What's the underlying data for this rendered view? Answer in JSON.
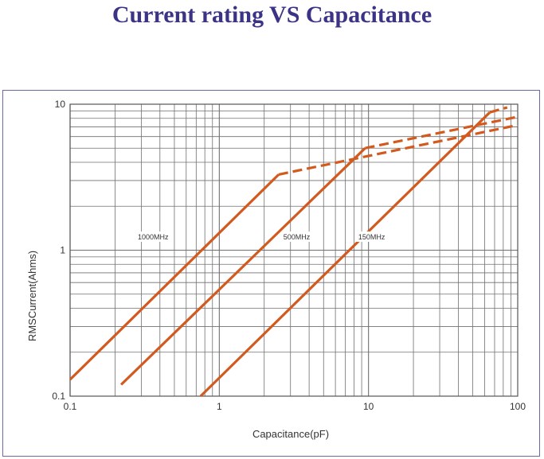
{
  "page_title": "Current rating VS Capacitance",
  "colors": {
    "title": "#3b3486",
    "series": "#d35a1f",
    "grid": "#6f6f6f",
    "frame": "#6b6aa0"
  },
  "chart_data": {
    "type": "line",
    "title": "Current rating VS Capacitance",
    "xlabel": "Capacitance(pF)",
    "ylabel": "RMSCurrent(Ahms)",
    "xscale": "log",
    "yscale": "log",
    "xlim": [
      0.1,
      100
    ],
    "ylim": [
      0.1,
      10
    ],
    "xticks": [
      "0.1",
      "1",
      "10",
      "100"
    ],
    "yticks": [
      "0.1",
      "1",
      "10"
    ],
    "grid": true,
    "series": [
      {
        "name": "1000MHz",
        "label_at": [
          0.36,
          1.2
        ],
        "solid": [
          [
            0.1,
            0.13
          ],
          [
            2.5,
            3.3
          ]
        ],
        "dashed": [
          [
            2.5,
            3.3
          ],
          [
            100,
            7.2
          ]
        ]
      },
      {
        "name": "500MHz",
        "label_at": [
          3.3,
          1.2
        ],
        "solid": [
          [
            0.22,
            0.12
          ],
          [
            9.5,
            5.0
          ]
        ],
        "dashed": [
          [
            9.5,
            5.0
          ],
          [
            100,
            8.2
          ]
        ]
      },
      {
        "name": "150MHz",
        "label_at": [
          10.5,
          1.2
        ],
        "solid": [
          [
            0.75,
            0.1
          ],
          [
            65,
            8.8
          ]
        ],
        "dashed": [
          [
            65,
            8.8
          ],
          [
            85,
            9.5
          ]
        ]
      }
    ]
  }
}
